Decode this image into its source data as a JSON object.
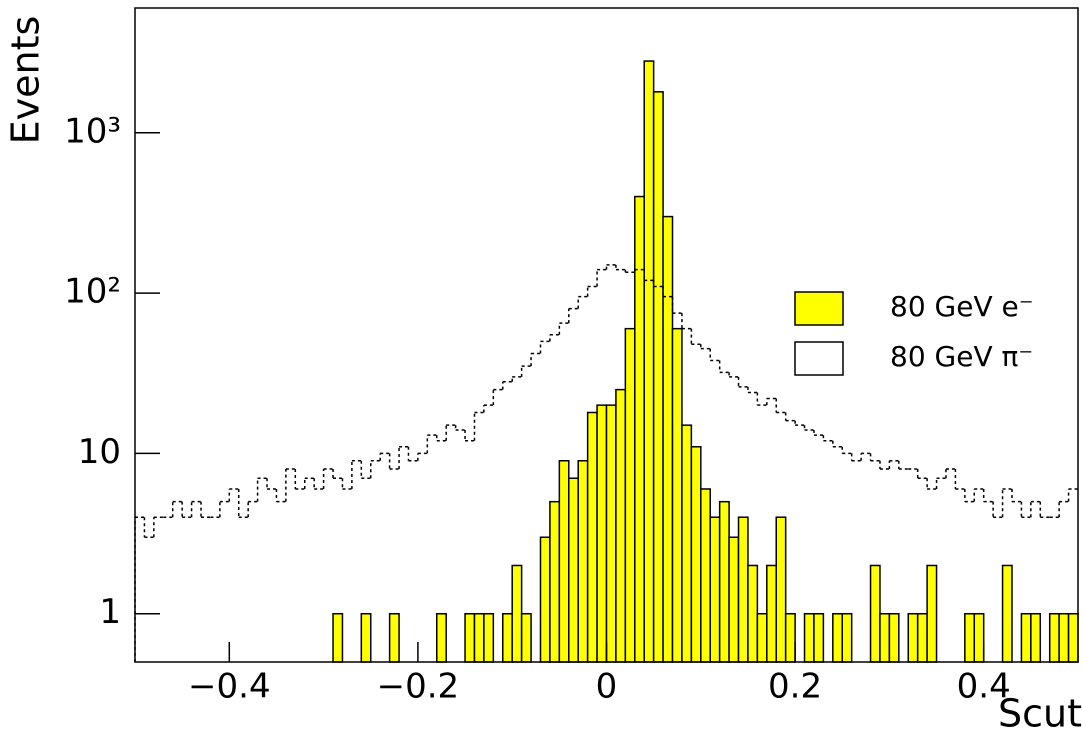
{
  "chart_data": {
    "type": "histogram",
    "x_label": "Scut",
    "y_label": "Events",
    "log_y": true,
    "legend": "center right",
    "bins": [
      -0.5,
      -0.49,
      -0.48,
      -0.47,
      -0.46,
      -0.45,
      -0.44,
      -0.43,
      -0.42,
      -0.41,
      -0.4,
      -0.39,
      -0.38,
      -0.37,
      -0.36,
      -0.35,
      -0.34,
      -0.33,
      -0.32,
      -0.31,
      -0.3,
      -0.29,
      -0.28,
      -0.27,
      -0.26,
      -0.25,
      -0.24,
      -0.23,
      -0.22,
      -0.21,
      -0.2,
      -0.19,
      -0.18,
      -0.17,
      -0.16,
      -0.15,
      -0.14,
      -0.13,
      -0.12,
      -0.11,
      -0.1,
      -0.09,
      -0.08,
      -0.07,
      -0.06,
      -0.05,
      -0.04,
      -0.03,
      -0.02,
      -0.01,
      0,
      0.01,
      0.02,
      0.03,
      0.04,
      0.05,
      0.06,
      0.07,
      0.08,
      0.09,
      0.1,
      0.11,
      0.12,
      0.13,
      0.14,
      0.15,
      0.16,
      0.17,
      0.18,
      0.19,
      0.2,
      0.21,
      0.22,
      0.23,
      0.24,
      0.25,
      0.26,
      0.27,
      0.28,
      0.29,
      0.3,
      0.31,
      0.32,
      0.33,
      0.34,
      0.35,
      0.36,
      0.37,
      0.38,
      0.39,
      0.4,
      0.41,
      0.42,
      0.43,
      0.44,
      0.45,
      0.46,
      0.47,
      0.48,
      0.49,
      0.5
    ],
    "series": [
      {
        "name": "80 GeV e⁻",
        "color": "#ffff00",
        "style": "filled",
        "values": [
          0,
          0,
          0,
          0,
          0,
          0,
          0,
          0,
          0,
          0,
          0,
          0,
          0,
          0,
          0,
          0,
          0,
          0,
          0,
          0,
          0,
          1,
          0,
          0,
          1,
          0,
          0,
          1,
          0,
          0,
          0,
          0,
          1,
          0,
          0,
          1,
          1,
          1,
          0,
          1,
          2,
          1,
          0,
          3,
          5,
          9,
          7,
          9,
          18,
          20,
          20,
          25,
          60,
          400,
          2800,
          1800,
          300,
          60,
          15,
          11,
          6,
          4,
          5,
          3,
          4,
          2,
          1,
          2,
          4,
          1,
          0,
          1,
          1,
          0,
          1,
          1,
          0,
          0,
          2,
          1,
          1,
          0,
          1,
          1,
          2,
          0,
          0,
          0,
          1,
          1,
          0,
          0,
          2,
          0,
          1,
          1,
          0,
          1,
          1,
          1
        ]
      },
      {
        "name": "80 GeV π⁻",
        "color": "#ffffff",
        "style": "dashed",
        "values": [
          4,
          3,
          4,
          4,
          5,
          4,
          5,
          4,
          4,
          5,
          6,
          4,
          5,
          7,
          6,
          5,
          8,
          6,
          7,
          6,
          8,
          7,
          6,
          9,
          7,
          9,
          10,
          8,
          11,
          9,
          10,
          13,
          12,
          15,
          14,
          12,
          18,
          20,
          25,
          28,
          30,
          35,
          42,
          50,
          55,
          65,
          80,
          95,
          110,
          140,
          150,
          140,
          135,
          140,
          120,
          110,
          95,
          75,
          60,
          48,
          45,
          38,
          32,
          30,
          26,
          24,
          20,
          22,
          18,
          16,
          15,
          14,
          13,
          12,
          11,
          10,
          9,
          10,
          9,
          8,
          9,
          8,
          8,
          7,
          6,
          7,
          8,
          6,
          5,
          6,
          5,
          4,
          6,
          5,
          4,
          5,
          4,
          4,
          5,
          6
        ]
      }
    ],
    "xlim": [
      -0.5,
      0.5
    ],
    "xticks": [
      {
        "value": -0.4,
        "label": "−0.4"
      },
      {
        "value": -0.2,
        "label": "−0.2"
      },
      0,
      0.2,
      0.4
    ],
    "ylim": [
      0.5,
      6000
    ],
    "yticks": [
      1,
      10,
      {
        "value": 100,
        "label": "10²"
      },
      {
        "value": 1000,
        "label": "10³"
      }
    ]
  }
}
